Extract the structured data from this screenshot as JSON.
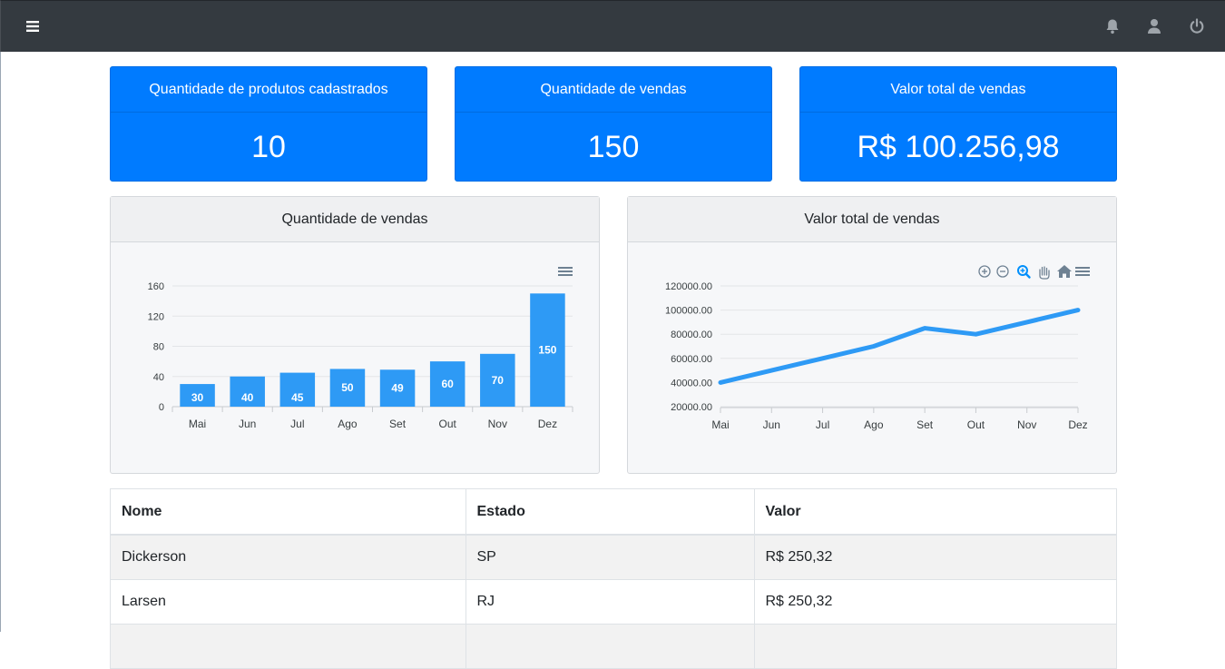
{
  "navbar": {
    "icons": [
      "menu-icon",
      "bell-icon",
      "user-icon",
      "power-icon"
    ]
  },
  "stats": [
    {
      "title": "Quantidade de produtos cadastrados",
      "value": "10"
    },
    {
      "title": "Quantidade de vendas",
      "value": "150"
    },
    {
      "title": "Valor total de vendas",
      "value": "R$ 100.256,98"
    }
  ],
  "charts": {
    "bar_title": "Quantidade de vendas",
    "line_title": "Valor total de vendas"
  },
  "chart_data": [
    {
      "type": "bar",
      "title": "Quantidade de vendas",
      "categories": [
        "Mai",
        "Jun",
        "Jul",
        "Ago",
        "Set",
        "Out",
        "Nov",
        "Dez"
      ],
      "values": [
        30,
        40,
        45,
        50,
        49,
        60,
        70,
        150
      ],
      "ylim": [
        0,
        160
      ],
      "yticks": [
        "0",
        "40",
        "80",
        "120",
        "160"
      ],
      "color": "#2e9af5",
      "grid": true
    },
    {
      "type": "line",
      "title": "Valor total de vendas",
      "categories": [
        "Mai",
        "Jun",
        "Jul",
        "Ago",
        "Set",
        "Out",
        "Nov",
        "Dez"
      ],
      "values": [
        40000,
        50000,
        60000,
        70000,
        85000,
        80000,
        90000,
        100000
      ],
      "ylim": [
        20000,
        120000
      ],
      "yticks": [
        "20000.00",
        "40000.00",
        "60000.00",
        "80000.00",
        "100000.00",
        "120000.00"
      ],
      "color": "#2e9af5",
      "grid": true
    }
  ],
  "table": {
    "headers": [
      "Nome",
      "Estado",
      "Valor"
    ],
    "rows": [
      [
        "Dickerson",
        "SP",
        "R$ 250,32"
      ],
      [
        "Larsen",
        "RJ",
        "R$ 250,32"
      ],
      [
        "",
        "",
        ""
      ]
    ]
  }
}
